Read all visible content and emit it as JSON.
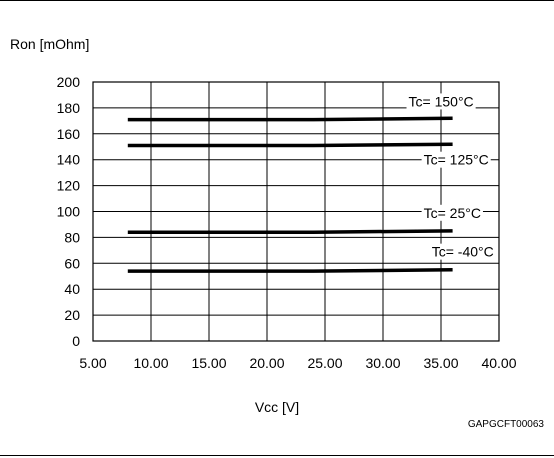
{
  "figure_id": "GAPGCFT00063",
  "chart_data": {
    "type": "line",
    "xlabel": "Vcc [V]",
    "ylabel": "Ron [mOhm]",
    "xlim": [
      5,
      40
    ],
    "ylim": [
      0,
      200
    ],
    "x_ticks": [
      "5.00",
      "10.00",
      "15.00",
      "20.00",
      "25.00",
      "30.00",
      "35.00",
      "40.00"
    ],
    "x_tick_values": [
      5,
      10,
      15,
      20,
      25,
      30,
      35,
      40
    ],
    "y_ticks": [
      "0",
      "20",
      "40",
      "60",
      "80",
      "100",
      "120",
      "140",
      "160",
      "180",
      "200"
    ],
    "y_tick_values": [
      0,
      20,
      40,
      60,
      80,
      100,
      120,
      140,
      160,
      180,
      200
    ],
    "grid": true,
    "series": [
      {
        "name": "Tc= 150°C",
        "x": [
          8,
          15,
          24,
          36
        ],
        "y": [
          171,
          171,
          171,
          172
        ]
      },
      {
        "name": "Tc= 125°C",
        "x": [
          8,
          15,
          24,
          36
        ],
        "y": [
          151,
          151,
          151,
          152
        ]
      },
      {
        "name": "Tc= 25°C",
        "x": [
          8,
          15,
          24,
          36
        ],
        "y": [
          84,
          84,
          84,
          85
        ]
      },
      {
        "name": "Tc= -40°C",
        "x": [
          8,
          15,
          24,
          36
        ],
        "y": [
          54,
          54,
          54,
          55
        ]
      }
    ],
    "annotations": [
      {
        "text": "Tc= 150°C",
        "series": 0,
        "x": 32.2,
        "y": 185
      },
      {
        "text": "Tc= 125°C",
        "series": 1,
        "x": 33.5,
        "y": 140
      },
      {
        "text": "Tc= 25°C",
        "series": 2,
        "x": 33.5,
        "y": 99
      },
      {
        "text": "Tc= -40°C",
        "series": 3,
        "x": 34.2,
        "y": 69
      }
    ]
  }
}
